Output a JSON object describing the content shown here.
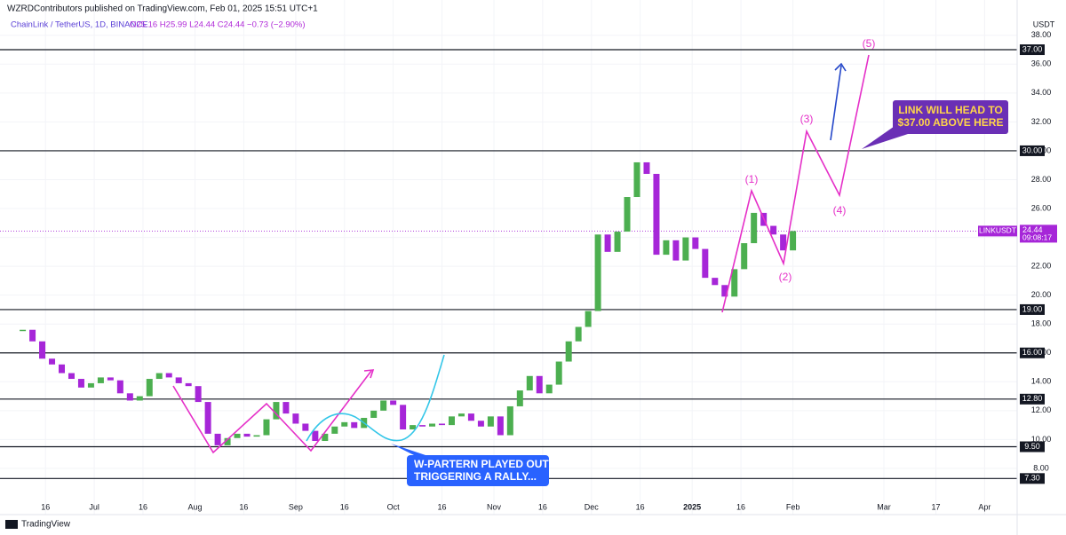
{
  "header": {
    "publisher": "WZRDContributors published on TradingView.com, Feb 01, 2025 15:51 UTC+1",
    "symbol": "ChainLink / TetherUS, 1D, BINANCE",
    "ohlc": "O25.16 H25.99 L24.44 C24.44 −0.73 (−2.90%)"
  },
  "footer": {
    "brand": "TradingView"
  },
  "chart_data": {
    "type": "candlestick",
    "currency": "USDT",
    "x": [
      -22,
      -19,
      -16,
      -13,
      -10,
      -7,
      -4,
      -1,
      2,
      5,
      8,
      11,
      14,
      17,
      20,
      23,
      26,
      29,
      32,
      35,
      38,
      41,
      44,
      47,
      50,
      53,
      56,
      59,
      62,
      65,
      68,
      71,
      74,
      77,
      80,
      83,
      86,
      89,
      92,
      95,
      98,
      101,
      104,
      107,
      110,
      113,
      116,
      119,
      122,
      125,
      128,
      131,
      134,
      137,
      140,
      143,
      146,
      149,
      152,
      155,
      158,
      161,
      164,
      167,
      170,
      173,
      176,
      179,
      182,
      185,
      188,
      191,
      194,
      197,
      200,
      203,
      206,
      209,
      212,
      215
    ],
    "series": [
      {
        "name": "LINKUSDT",
        "up_color": "#4caf50",
        "down_color": "#a626d8",
        "values": [
          17.6,
          16.8,
          15.6,
          15.2,
          14.6,
          14.2,
          13.6,
          13.9,
          14.3,
          14.1,
          13.2,
          12.7,
          13.0,
          14.2,
          14.6,
          14.3,
          13.9,
          13.7,
          12.6,
          10.4,
          9.6,
          10.1,
          10.4,
          10.2,
          10.3,
          11.4,
          12.6,
          11.8,
          11.1,
          10.6,
          9.9,
          10.4,
          10.9,
          11.2,
          10.8,
          11.5,
          12.0,
          12.7,
          12.4,
          10.7,
          11.0,
          10.9,
          11.1,
          11.0,
          11.6,
          11.8,
          11.3,
          10.9,
          11.6,
          10.3,
          12.3,
          13.4,
          14.4,
          13.2,
          13.8,
          15.4,
          16.8,
          17.8,
          18.9,
          24.2,
          23.0,
          24.4,
          26.8,
          29.2,
          28.4,
          22.8,
          23.8,
          22.4,
          24.0,
          23.2,
          21.2,
          20.7,
          19.9,
          21.8,
          23.6,
          25.7,
          24.8,
          24.2,
          23.1,
          24.44
        ],
        "value_labels": {
          "79": "24.44"
        },
        "countdown": "09:08:17"
      }
    ],
    "xlim": [
      -29,
      284
    ],
    "xticks": [
      {
        "value": -15,
        "label": "16"
      },
      {
        "value": 0,
        "label": "Jul"
      },
      {
        "value": 15,
        "label": "16"
      },
      {
        "value": 31,
        "label": "Aug"
      },
      {
        "value": 46,
        "label": "16"
      },
      {
        "value": 62,
        "label": "Sep"
      },
      {
        "value": 77,
        "label": "16"
      },
      {
        "value": 92,
        "label": "Oct"
      },
      {
        "value": 107,
        "label": "16"
      },
      {
        "value": 123,
        "label": "Nov"
      },
      {
        "value": 138,
        "label": "16"
      },
      {
        "value": 153,
        "label": "Dec"
      },
      {
        "value": 168,
        "label": "16"
      },
      {
        "value": 184,
        "label": "2025"
      },
      {
        "value": 199,
        "label": "16"
      },
      {
        "value": 215,
        "label": "Feb"
      },
      {
        "value": 243,
        "label": "Mar"
      },
      {
        "value": 259,
        "label": "17"
      },
      {
        "value": 274,
        "label": "Apr"
      }
    ],
    "ylim": [
      4.8,
      38.6
    ],
    "yticks": [
      {
        "value": 8,
        "label": "8.00"
      },
      {
        "value": 10,
        "label": "10.00"
      },
      {
        "value": 12,
        "label": "12.00"
      },
      {
        "value": 14,
        "label": "14.00"
      },
      {
        "value": 16,
        "label": "16.00"
      },
      {
        "value": 18,
        "label": "18.00"
      },
      {
        "value": 20,
        "label": "20.00"
      },
      {
        "value": 22,
        "label": "22.00"
      },
      {
        "value": 24,
        "label": "24.00"
      },
      {
        "value": 26,
        "label": "26.00"
      },
      {
        "value": 28,
        "label": "28.00"
      },
      {
        "value": 30,
        "label": "30.00"
      },
      {
        "value": 32,
        "label": "32.00"
      },
      {
        "value": 34,
        "label": "34.00"
      },
      {
        "value": 36,
        "label": "36.00"
      },
      {
        "value": 38,
        "label": "38.00"
      }
    ],
    "levels": [
      {
        "value": 37,
        "label": "37.00"
      },
      {
        "value": 30,
        "label": "30.00"
      },
      {
        "value": 19,
        "label": "19.00"
      },
      {
        "value": 16,
        "label": "16.00"
      },
      {
        "value": 12.8,
        "label": "12.80"
      },
      {
        "value": 9.5,
        "label": "9.50"
      },
      {
        "value": 7.3,
        "label": "7.30"
      }
    ],
    "grid": true,
    "annotations": {
      "waves": [
        "(1)",
        "(2)",
        "(3)",
        "(4)",
        "(5)"
      ],
      "target_callout": [
        "LINK WILL HEAD TO",
        "$37.00 ABOVE HERE"
      ],
      "pattern_callout": [
        "W-PARTERN PLAYED OUT",
        "TRIGGERING A RALLY..."
      ]
    }
  }
}
